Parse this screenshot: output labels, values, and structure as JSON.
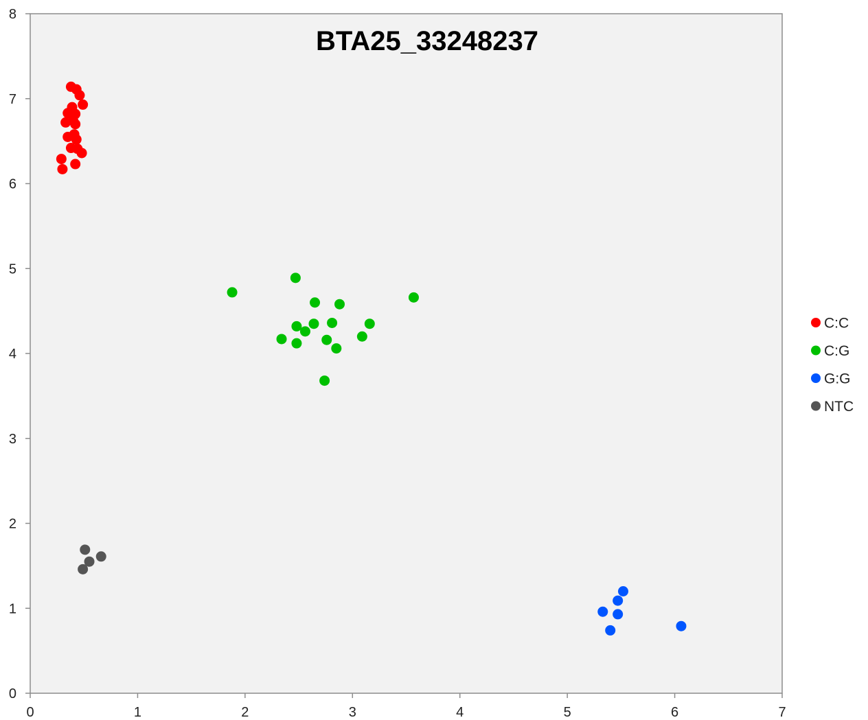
{
  "chart_data": {
    "type": "scatter",
    "title": "BTA25_33248237",
    "xlim": [
      0,
      7
    ],
    "ylim": [
      0,
      8
    ],
    "xticks": [
      0,
      1,
      2,
      3,
      4,
      5,
      6,
      7
    ],
    "yticks": [
      0,
      1,
      2,
      3,
      4,
      5,
      6,
      7,
      8
    ],
    "grid": false,
    "legend_position": "right",
    "plot_background": "#f2f2f2",
    "series": [
      {
        "name": "C:C",
        "color": "#ff0000",
        "points": [
          [
            0.38,
            7.14
          ],
          [
            0.43,
            7.11
          ],
          [
            0.46,
            7.04
          ],
          [
            0.49,
            6.93
          ],
          [
            0.39,
            6.9
          ],
          [
            0.35,
            6.83
          ],
          [
            0.42,
            6.82
          ],
          [
            0.4,
            6.74
          ],
          [
            0.33,
            6.72
          ],
          [
            0.42,
            6.7
          ],
          [
            0.41,
            6.58
          ],
          [
            0.35,
            6.55
          ],
          [
            0.43,
            6.52
          ],
          [
            0.38,
            6.42
          ],
          [
            0.44,
            6.41
          ],
          [
            0.48,
            6.36
          ],
          [
            0.29,
            6.29
          ],
          [
            0.42,
            6.23
          ],
          [
            0.3,
            6.17
          ]
        ]
      },
      {
        "name": "C:G",
        "color": "#00c000",
        "points": [
          [
            1.88,
            4.72
          ],
          [
            2.47,
            4.89
          ],
          [
            2.65,
            4.6
          ],
          [
            2.88,
            4.58
          ],
          [
            3.57,
            4.66
          ],
          [
            2.64,
            4.35
          ],
          [
            2.48,
            4.32
          ],
          [
            2.56,
            4.26
          ],
          [
            2.81,
            4.36
          ],
          [
            3.16,
            4.35
          ],
          [
            2.34,
            4.17
          ],
          [
            2.48,
            4.12
          ],
          [
            2.76,
            4.16
          ],
          [
            3.09,
            4.2
          ],
          [
            2.85,
            4.06
          ],
          [
            2.74,
            3.68
          ]
        ]
      },
      {
        "name": "G:G",
        "color": "#0055ff",
        "points": [
          [
            5.52,
            1.2
          ],
          [
            5.47,
            1.09
          ],
          [
            5.33,
            0.96
          ],
          [
            5.47,
            0.93
          ],
          [
            5.4,
            0.74
          ],
          [
            6.06,
            0.79
          ]
        ]
      },
      {
        "name": "NTC",
        "color": "#555555",
        "points": [
          [
            0.51,
            1.69
          ],
          [
            0.66,
            1.61
          ],
          [
            0.55,
            1.55
          ],
          [
            0.49,
            1.46
          ]
        ]
      }
    ]
  }
}
